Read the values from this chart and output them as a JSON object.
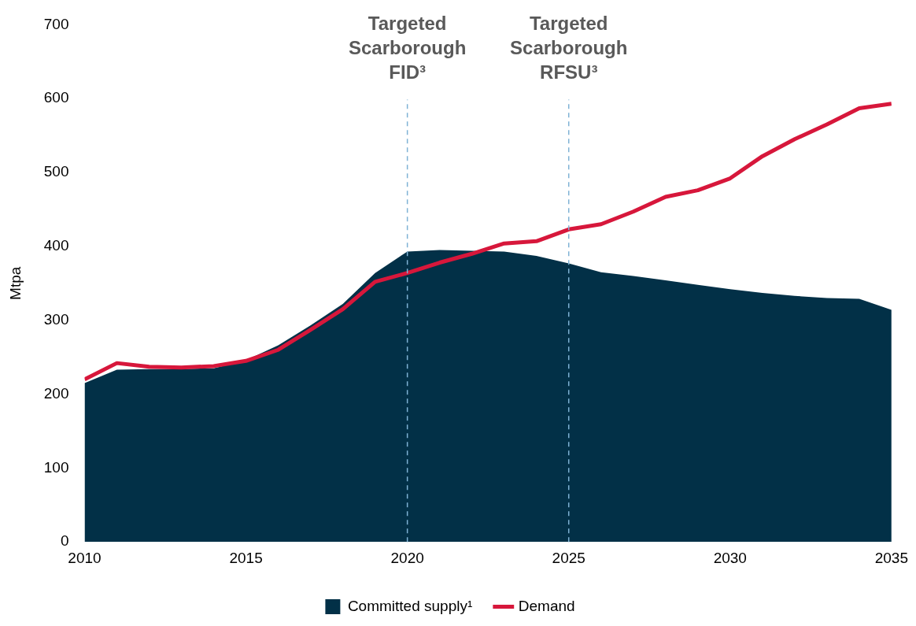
{
  "chart_data": {
    "type": "line",
    "ylabel": "Mtpa",
    "x": [
      2010,
      2011,
      2012,
      2013,
      2014,
      2015,
      2016,
      2017,
      2018,
      2019,
      2020,
      2021,
      2022,
      2023,
      2024,
      2025,
      2026,
      2027,
      2028,
      2029,
      2030,
      2031,
      2032,
      2033,
      2034,
      2035
    ],
    "series": [
      {
        "name": "Committed supply¹",
        "type": "area",
        "color": "#023047",
        "values": [
          215,
          233,
          234,
          234,
          235,
          246,
          266,
          293,
          322,
          364,
          393,
          395,
          394,
          393,
          387,
          377,
          365,
          360,
          354,
          348,
          342,
          337,
          333,
          330,
          329,
          314
        ]
      },
      {
        "name": "Demand",
        "color": "#d7173b",
        "values": [
          220,
          242,
          237,
          236,
          238,
          245,
          260,
          287,
          315,
          352,
          364,
          378,
          390,
          404,
          407,
          423,
          430,
          447,
          467,
          476,
          492,
          522,
          545,
          565,
          587,
          593
        ]
      }
    ],
    "xlim": [
      2010,
      2035
    ],
    "xticks": [
      2010,
      2015,
      2020,
      2025,
      2030,
      2035
    ],
    "ylim": [
      0,
      700
    ],
    "yticks": [
      0,
      100,
      200,
      300,
      400,
      500,
      600,
      700
    ],
    "ref_lines": [
      {
        "axis": "x",
        "value": 2020,
        "label": "Targeted Scarborough FID³",
        "color": "#7fb2d5",
        "line_style": "dashed"
      },
      {
        "axis": "x",
        "value": 2025,
        "label": "Targeted Scarborough RFSU³",
        "color": "#7fb2d5",
        "line_style": "dashed"
      }
    ],
    "grid": false,
    "legend": "bottom",
    "marker": "none"
  }
}
